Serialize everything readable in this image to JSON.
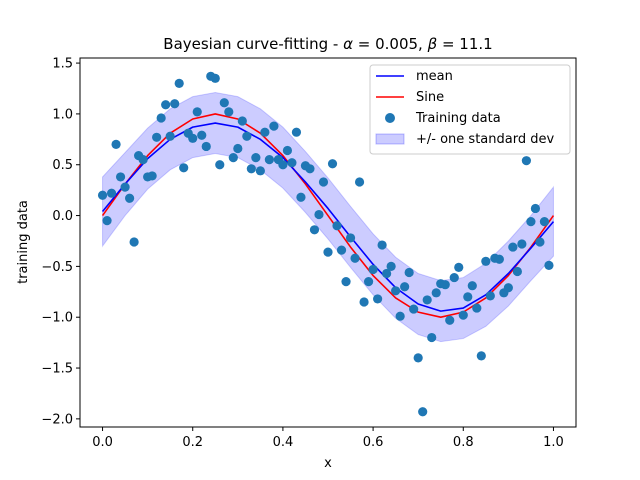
{
  "chart_data": {
    "type": "line",
    "title": "Bayesian curve-fitting - α = 0.005, β = 11.1",
    "title_parts": {
      "prefix": "Bayesian curve-fitting - ",
      "alpha_sym": "α",
      "alpha_val": " = 0.005, ",
      "beta_sym": "β",
      "beta_val": " = 11.1"
    },
    "xlabel": "x",
    "ylabel": "training data",
    "xlim": [
      -0.05,
      1.05
    ],
    "ylim": [
      -2.08,
      1.55
    ],
    "xticks": [
      0.0,
      0.2,
      0.4,
      0.6,
      0.8,
      1.0
    ],
    "xtick_labels": [
      "0.0",
      "0.2",
      "0.4",
      "0.6",
      "0.8",
      "1.0"
    ],
    "yticks": [
      1.5,
      1.0,
      0.5,
      0.0,
      -0.5,
      -1.0,
      -1.5,
      -2.0
    ],
    "ytick_labels": [
      "1.5",
      "1.0",
      "0.5",
      "0.0",
      "−0.5",
      "−1.0",
      "−1.5",
      "−2.0"
    ],
    "legend": {
      "position": "upper right",
      "entries": [
        {
          "label": "mean",
          "kind": "line",
          "color": "#0000ff"
        },
        {
          "label": "Sine",
          "kind": "line",
          "color": "#ff0000"
        },
        {
          "label": "Training data",
          "kind": "marker",
          "color": "#1f77b4"
        },
        {
          "label": "+/- one standard dev",
          "kind": "patch",
          "color": "#0000ff"
        }
      ]
    },
    "series": [
      {
        "name": "mean",
        "color": "#0000ff",
        "x": [
          0.0,
          0.05,
          0.1,
          0.15,
          0.2,
          0.25,
          0.3,
          0.35,
          0.4,
          0.45,
          0.5,
          0.55,
          0.6,
          0.65,
          0.7,
          0.75,
          0.8,
          0.85,
          0.9,
          0.95,
          1.0
        ],
        "y": [
          0.04,
          0.31,
          0.56,
          0.75,
          0.87,
          0.91,
          0.87,
          0.75,
          0.57,
          0.33,
          0.07,
          -0.21,
          -0.48,
          -0.71,
          -0.87,
          -0.94,
          -0.91,
          -0.78,
          -0.57,
          -0.32,
          -0.06
        ]
      },
      {
        "name": "Sine",
        "color": "#ff0000",
        "x": [
          0.0,
          0.05,
          0.1,
          0.15,
          0.2,
          0.25,
          0.3,
          0.35,
          0.4,
          0.45,
          0.5,
          0.55,
          0.6,
          0.65,
          0.7,
          0.75,
          0.8,
          0.85,
          0.9,
          0.95,
          1.0
        ],
        "y": [
          0.0,
          0.31,
          0.59,
          0.81,
          0.95,
          1.0,
          0.95,
          0.81,
          0.59,
          0.31,
          0.0,
          -0.31,
          -0.59,
          -0.81,
          -0.95,
          -1.0,
          -0.95,
          -0.81,
          -0.59,
          -0.31,
          0.0
        ]
      }
    ],
    "band": {
      "name": "+/- one standard dev",
      "color": "#0000ff",
      "x": [
        0.0,
        0.05,
        0.1,
        0.15,
        0.2,
        0.25,
        0.3,
        0.35,
        0.4,
        0.45,
        0.5,
        0.55,
        0.6,
        0.65,
        0.7,
        0.75,
        0.8,
        0.85,
        0.9,
        0.95,
        1.0
      ],
      "upper": [
        0.38,
        0.62,
        0.86,
        1.05,
        1.17,
        1.21,
        1.17,
        1.05,
        0.87,
        0.63,
        0.37,
        0.09,
        -0.18,
        -0.41,
        -0.57,
        -0.64,
        -0.61,
        -0.47,
        -0.25,
        0.0,
        0.28
      ],
      "lower": [
        -0.3,
        0.0,
        0.26,
        0.45,
        0.57,
        0.61,
        0.57,
        0.45,
        0.27,
        0.03,
        -0.23,
        -0.51,
        -0.78,
        -1.01,
        -1.17,
        -1.24,
        -1.21,
        -1.09,
        -0.89,
        -0.64,
        -0.4
      ]
    },
    "scatter": {
      "name": "Training data",
      "color": "#1f77b4",
      "points": [
        [
          0.0,
          0.2
        ],
        [
          0.01,
          -0.05
        ],
        [
          0.02,
          0.22
        ],
        [
          0.03,
          0.7
        ],
        [
          0.04,
          0.38
        ],
        [
          0.05,
          0.28
        ],
        [
          0.06,
          0.17
        ],
        [
          0.07,
          -0.26
        ],
        [
          0.08,
          0.59
        ],
        [
          0.09,
          0.55
        ],
        [
          0.1,
          0.38
        ],
        [
          0.11,
          0.39
        ],
        [
          0.12,
          0.77
        ],
        [
          0.13,
          0.96
        ],
        [
          0.14,
          1.09
        ],
        [
          0.15,
          0.78
        ],
        [
          0.16,
          1.1
        ],
        [
          0.17,
          1.3
        ],
        [
          0.18,
          0.47
        ],
        [
          0.19,
          0.81
        ],
        [
          0.2,
          0.76
        ],
        [
          0.21,
          1.02
        ],
        [
          0.22,
          0.79
        ],
        [
          0.23,
          0.68
        ],
        [
          0.24,
          1.37
        ],
        [
          0.25,
          1.35
        ],
        [
          0.26,
          0.5
        ],
        [
          0.27,
          1.11
        ],
        [
          0.28,
          1.02
        ],
        [
          0.29,
          0.57
        ],
        [
          0.3,
          0.66
        ],
        [
          0.31,
          0.93
        ],
        [
          0.32,
          0.78
        ],
        [
          0.33,
          0.46
        ],
        [
          0.34,
          0.57
        ],
        [
          0.35,
          0.44
        ],
        [
          0.36,
          0.82
        ],
        [
          0.37,
          0.55
        ],
        [
          0.38,
          0.88
        ],
        [
          0.39,
          0.55
        ],
        [
          0.4,
          0.5
        ],
        [
          0.41,
          0.64
        ],
        [
          0.42,
          0.52
        ],
        [
          0.43,
          0.82
        ],
        [
          0.44,
          0.18
        ],
        [
          0.45,
          0.49
        ],
        [
          0.46,
          0.46
        ],
        [
          0.47,
          -0.14
        ],
        [
          0.48,
          0.01
        ],
        [
          0.49,
          0.33
        ],
        [
          0.5,
          -0.36
        ],
        [
          0.51,
          0.51
        ],
        [
          0.52,
          -0.1
        ],
        [
          0.53,
          -0.34
        ],
        [
          0.54,
          -0.65
        ],
        [
          0.55,
          -0.22
        ],
        [
          0.56,
          -0.42
        ],
        [
          0.57,
          0.33
        ],
        [
          0.58,
          -0.85
        ],
        [
          0.59,
          -0.65
        ],
        [
          0.6,
          -0.53
        ],
        [
          0.61,
          -0.82
        ],
        [
          0.62,
          -0.29
        ],
        [
          0.63,
          -0.57
        ],
        [
          0.64,
          -0.5
        ],
        [
          0.65,
          -0.74
        ],
        [
          0.66,
          -0.99
        ],
        [
          0.67,
          -0.7
        ],
        [
          0.68,
          -0.56
        ],
        [
          0.69,
          -0.92
        ],
        [
          0.7,
          -1.4
        ],
        [
          0.71,
          -1.93
        ],
        [
          0.72,
          -0.83
        ],
        [
          0.73,
          -1.2
        ],
        [
          0.74,
          -0.76
        ],
        [
          0.75,
          -0.67
        ],
        [
          0.76,
          -0.68
        ],
        [
          0.77,
          -1.03
        ],
        [
          0.78,
          -0.61
        ],
        [
          0.79,
          -0.51
        ],
        [
          0.8,
          -0.98
        ],
        [
          0.81,
          -0.8
        ],
        [
          0.82,
          -0.69
        ],
        [
          0.83,
          -0.91
        ],
        [
          0.84,
          -1.38
        ],
        [
          0.85,
          -0.45
        ],
        [
          0.86,
          -0.79
        ],
        [
          0.87,
          -0.42
        ],
        [
          0.88,
          -0.43
        ],
        [
          0.89,
          -0.76
        ],
        [
          0.9,
          -0.71
        ],
        [
          0.91,
          -0.31
        ],
        [
          0.92,
          -0.55
        ],
        [
          0.93,
          -0.28
        ],
        [
          0.94,
          0.54
        ],
        [
          0.95,
          -0.06
        ],
        [
          0.96,
          0.07
        ],
        [
          0.97,
          -0.26
        ],
        [
          0.98,
          -0.06
        ],
        [
          0.99,
          -0.49
        ]
      ]
    }
  }
}
